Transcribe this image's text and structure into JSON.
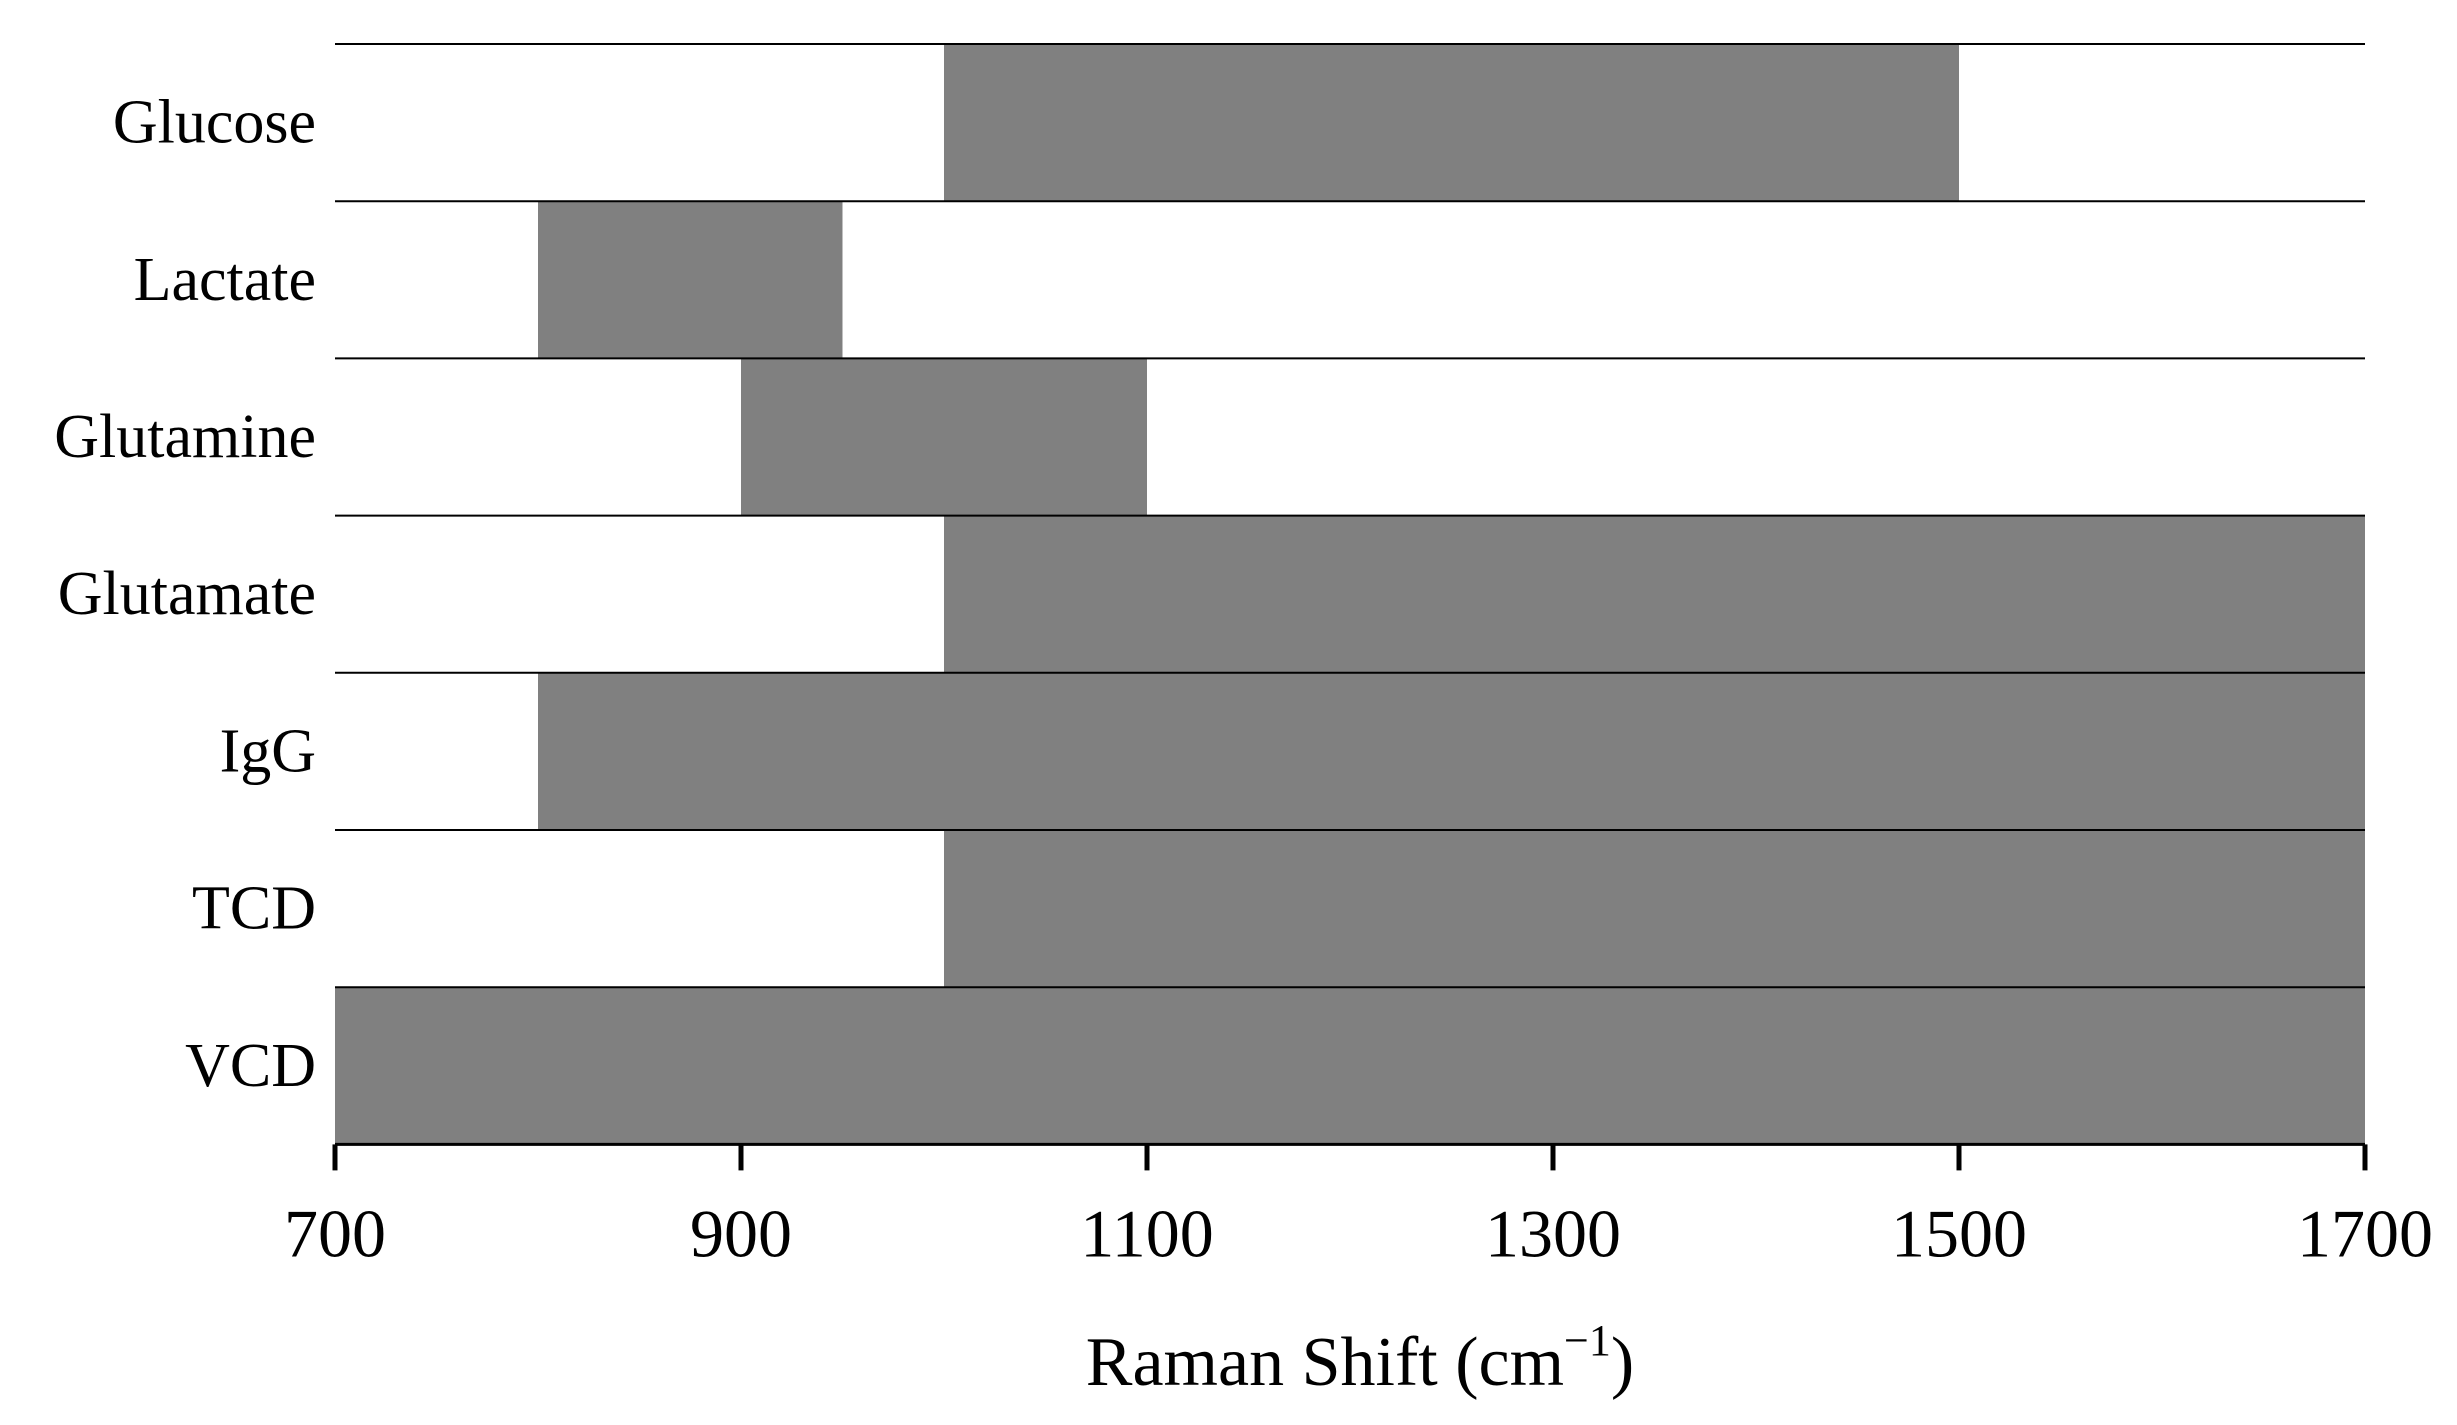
{
  "chart_data": {
    "type": "bar",
    "orientation": "horizontal",
    "bar_kind": "range",
    "categories": [
      "Glucose",
      "Lactate",
      "Glutamine",
      "Glutamate",
      "IgG",
      "TCD",
      "VCD"
    ],
    "ranges": [
      {
        "category": "Glucose",
        "start": 1000,
        "end": 1500
      },
      {
        "category": "Lactate",
        "start": 800,
        "end": 950
      },
      {
        "category": "Glutamine",
        "start": 900,
        "end": 1100
      },
      {
        "category": "Glutamate",
        "start": 1000,
        "end": 1700
      },
      {
        "category": "IgG",
        "start": 800,
        "end": 1700
      },
      {
        "category": "TCD",
        "start": 1000,
        "end": 1700
      },
      {
        "category": "VCD",
        "start": 700,
        "end": 1700
      }
    ],
    "xlim": [
      700,
      1700
    ],
    "xticks": [
      700,
      900,
      1100,
      1300,
      1500,
      1700
    ],
    "xtick_labels": [
      "700",
      "900",
      "1100",
      "1300",
      "1500",
      "1700"
    ],
    "xlabel_main": "Raman Shift (cm",
    "xlabel_sup": "−1",
    "xlabel_close": ")",
    "xlabel": "Raman Shift (cm−1)",
    "ylabel": "",
    "title": "",
    "grid": false,
    "legend": "none",
    "bar_color": "#808080",
    "line_color": "#000000"
  }
}
